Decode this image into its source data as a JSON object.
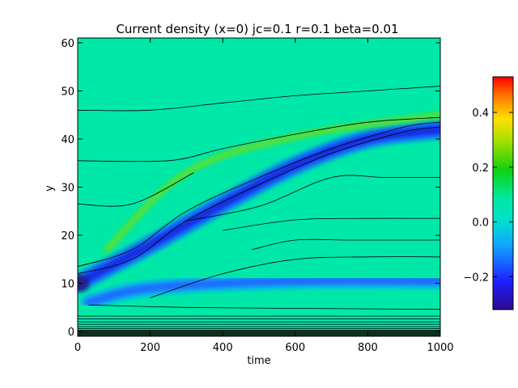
{
  "chart_data": {
    "type": "heatmap",
    "title": "Current density (x=0) jc=0.1 r=0.1 beta=0.01",
    "xlabel": "time",
    "ylabel": "y",
    "xlim": [
      0,
      1000
    ],
    "ylim": [
      -1,
      61
    ],
    "x_ticks": [
      0,
      200,
      400,
      600,
      800,
      1000
    ],
    "y_ticks": [
      0,
      10,
      20,
      30,
      40,
      50,
      60
    ],
    "colorbar": {
      "range": [
        -0.32,
        0.53
      ],
      "ticks": [
        -0.2,
        0.0,
        0.2,
        0.4
      ],
      "tick_labels": [
        "−0.2",
        "0.0",
        "0.2",
        "0.4"
      ],
      "colormap": "rainbow"
    },
    "background_value": 0.03,
    "features": [
      {
        "name": "main negative band",
        "value": -0.17,
        "center_y_at_time": [
          [
            0,
            10
          ],
          [
            200,
            18
          ],
          [
            400,
            26.5
          ],
          [
            600,
            34.5
          ],
          [
            800,
            40
          ],
          [
            1000,
            42
          ]
        ]
      },
      {
        "name": "upper positive band",
        "value": 0.2,
        "center_y_at_time": [
          [
            80,
            17
          ],
          [
            300,
            33
          ],
          [
            600,
            40.5
          ],
          [
            1000,
            45
          ]
        ]
      },
      {
        "name": "lower negative layer",
        "value": -0.12,
        "center_y_at_time": [
          [
            30,
            6
          ],
          [
            200,
            9
          ],
          [
            600,
            10.5
          ],
          [
            1000,
            10.5
          ]
        ]
      }
    ],
    "field_lines_y_at_time": [
      [
        [
          0,
          46
        ],
        [
          200,
          46
        ],
        [
          400,
          47.5
        ],
        [
          600,
          49
        ],
        [
          800,
          50
        ],
        [
          1000,
          51
        ]
      ],
      [
        [
          0,
          35.5
        ],
        [
          250,
          35.5
        ],
        [
          400,
          38
        ],
        [
          600,
          41
        ],
        [
          800,
          43.5
        ],
        [
          1000,
          44.5
        ]
      ],
      [
        [
          0,
          26.5
        ],
        [
          150,
          26.5
        ],
        [
          320,
          33
        ]
      ],
      [
        [
          0,
          13.5
        ],
        [
          150,
          17
        ],
        [
          300,
          25
        ],
        [
          500,
          32
        ],
        [
          700,
          38
        ],
        [
          900,
          42.5
        ],
        [
          1000,
          43.5
        ]
      ],
      [
        [
          0,
          12
        ],
        [
          150,
          15
        ],
        [
          300,
          23
        ],
        [
          500,
          30.5
        ],
        [
          700,
          37
        ],
        [
          900,
          41.5
        ],
        [
          1000,
          42.5
        ]
      ],
      [
        [
          300,
          23
        ],
        [
          500,
          26
        ],
        [
          700,
          32
        ],
        [
          850,
          32
        ],
        [
          1000,
          32
        ]
      ],
      [
        [
          400,
          21
        ],
        [
          600,
          23.2
        ],
        [
          800,
          23.5
        ],
        [
          1000,
          23.5
        ]
      ],
      [
        [
          480,
          17
        ],
        [
          600,
          19
        ],
        [
          750,
          19
        ],
        [
          1000,
          19
        ]
      ],
      [
        [
          200,
          7
        ],
        [
          400,
          12
        ],
        [
          600,
          15
        ],
        [
          800,
          15.5
        ],
        [
          1000,
          15.5
        ]
      ],
      [
        [
          30,
          5.5
        ],
        [
          300,
          5
        ],
        [
          600,
          4.8
        ],
        [
          1000,
          4.6
        ]
      ],
      [
        [
          0,
          3.2
        ],
        [
          1000,
          3.2
        ]
      ],
      [
        [
          0,
          2.6
        ],
        [
          1000,
          2.6
        ]
      ],
      [
        [
          0,
          2.0
        ],
        [
          1000,
          2.0
        ]
      ],
      [
        [
          0,
          1.5
        ],
        [
          1000,
          1.5
        ]
      ],
      [
        [
          0,
          1.0
        ],
        [
          1000,
          1.0
        ]
      ],
      [
        [
          0,
          0.6
        ],
        [
          1000,
          0.6
        ]
      ],
      [
        [
          0,
          0.2
        ],
        [
          1000,
          0.2
        ]
      ]
    ]
  }
}
